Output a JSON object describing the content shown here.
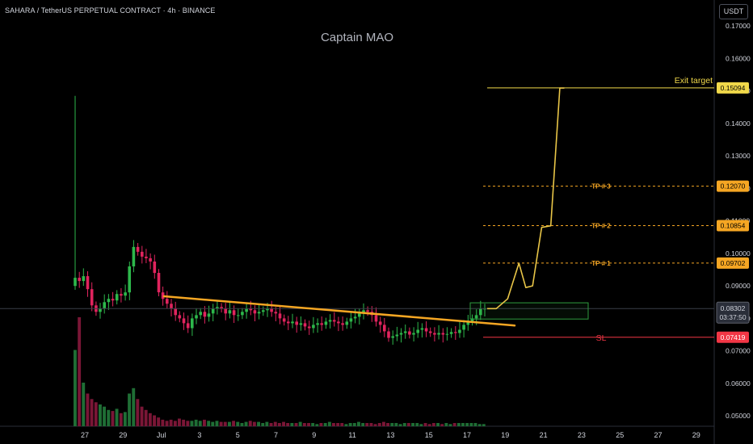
{
  "header": {
    "symbol": "SAHARA / TetherUS PERPETUAL CONTRACT · 4h · BINANCE",
    "currency_button": "USDT"
  },
  "watermark": "Captain MAO",
  "colors": {
    "background": "#000000",
    "bull": "#2db84b",
    "bear": "#e0245e",
    "trendline": "#f5a623",
    "projection": "#e8c547",
    "target": "#f0d84a",
    "tp": "#f5a623",
    "sl": "#f23645",
    "box": "#2e9b3e"
  },
  "chart_data": {
    "type": "candlestick",
    "title": "Captain MAO",
    "timeframe": "4h",
    "y_axis": {
      "ticks": [
        "0.17000",
        "0.16000",
        "0.15000",
        "0.14000",
        "0.13000",
        "0.12000",
        "0.11000",
        "0.10000",
        "0.09000",
        "0.08000",
        "0.07000",
        "0.06000",
        "0.05000"
      ],
      "ylim": [
        0.0468,
        0.178
      ]
    },
    "x_axis": {
      "ticks": [
        "27",
        "29",
        "Jul",
        "3",
        "5",
        "7",
        "9",
        "11",
        "13",
        "15",
        "17",
        "19",
        "21",
        "23",
        "25",
        "27",
        "29"
      ]
    },
    "price_series": [
      0.0925,
      0.0915,
      0.093,
      0.089,
      0.084,
      0.082,
      0.083,
      0.085,
      0.086,
      0.0855,
      0.0875,
      0.087,
      0.088,
      0.096,
      0.102,
      0.1005,
      0.099,
      0.0985,
      0.0975,
      0.094,
      0.088,
      0.086,
      0.0845,
      0.083,
      0.081,
      0.08,
      0.0785,
      0.077,
      0.08,
      0.081,
      0.082,
      0.0805,
      0.0815,
      0.083,
      0.0835,
      0.083,
      0.0815,
      0.0825,
      0.081,
      0.081,
      0.082,
      0.083,
      0.0825,
      0.0815,
      0.082,
      0.0825,
      0.083,
      0.082,
      0.0815,
      0.08,
      0.079,
      0.0785,
      0.079,
      0.078,
      0.0785,
      0.0775,
      0.077,
      0.078,
      0.0785,
      0.078,
      0.079,
      0.0795,
      0.079,
      0.0785,
      0.078,
      0.079,
      0.08,
      0.0805,
      0.0815,
      0.0825,
      0.082,
      0.081,
      0.079,
      0.078,
      0.076,
      0.074,
      0.0745,
      0.075,
      0.0755,
      0.076,
      0.075,
      0.0755,
      0.0765,
      0.077,
      0.076,
      0.0755,
      0.075,
      0.0755,
      0.075,
      0.0752,
      0.0758,
      0.0755,
      0.0765,
      0.078,
      0.079,
      0.08,
      0.081,
      0.083,
      0.083
    ],
    "volume_series": [
      0.7,
      1.0,
      0.4,
      0.3,
      0.25,
      0.22,
      0.2,
      0.18,
      0.15,
      0.14,
      0.16,
      0.12,
      0.13,
      0.3,
      0.35,
      0.25,
      0.18,
      0.15,
      0.12,
      0.1,
      0.08,
      0.06,
      0.05,
      0.06,
      0.05,
      0.07,
      0.06,
      0.05,
      0.05,
      0.06,
      0.05,
      0.06,
      0.05,
      0.04,
      0.05,
      0.04,
      0.04,
      0.04,
      0.05,
      0.04,
      0.03,
      0.04,
      0.05,
      0.04,
      0.04,
      0.03,
      0.04,
      0.03,
      0.04,
      0.03,
      0.04,
      0.03,
      0.03,
      0.03,
      0.04,
      0.03,
      0.03,
      0.03,
      0.02,
      0.03,
      0.03,
      0.04,
      0.03,
      0.03,
      0.03,
      0.02,
      0.03,
      0.03,
      0.04,
      0.03,
      0.03,
      0.03,
      0.02,
      0.03,
      0.04,
      0.03,
      0.03,
      0.03,
      0.02,
      0.03,
      0.03,
      0.03,
      0.03,
      0.02,
      0.03,
      0.02,
      0.03,
      0.03,
      0.02,
      0.03,
      0.02,
      0.03,
      0.03,
      0.03,
      0.03,
      0.03,
      0.03,
      0.02,
      0.02
    ],
    "trendline": {
      "start": 0.0868,
      "end": 0.0778
    },
    "projection_path": [
      [
        0,
        0.083
      ],
      [
        0.04,
        0.083
      ],
      [
        0.09,
        0.086
      ],
      [
        0.14,
        0.097
      ],
      [
        0.17,
        0.0895
      ],
      [
        0.2,
        0.09
      ],
      [
        0.24,
        0.108
      ],
      [
        0.28,
        0.1085
      ],
      [
        0.32,
        0.1509
      ],
      [
        0.34,
        0.1509
      ]
    ],
    "levels": [
      {
        "label": "Exit target",
        "price": 0.15094,
        "tag": "0.15094",
        "style": "solid",
        "role": "target"
      },
      {
        "label": "TP # 3",
        "price": 0.1207,
        "tag": "0.12070",
        "style": "dashed",
        "role": "tp"
      },
      {
        "label": "TP # 2",
        "price": 0.10854,
        "tag": "0.10854",
        "style": "dashed",
        "role": "tp"
      },
      {
        "label": "TP # 1",
        "price": 0.09702,
        "tag": "0.09702",
        "style": "dashed",
        "role": "tp"
      },
      {
        "label": "SL",
        "price": 0.07419,
        "tag": "0.07419",
        "style": "solid",
        "role": "sl"
      }
    ],
    "entry_box": {
      "top": 0.0848,
      "bottom": 0.0798
    },
    "current_price": {
      "price": 0.08302,
      "label": "0.08302",
      "countdown": "03:37:50"
    }
  }
}
